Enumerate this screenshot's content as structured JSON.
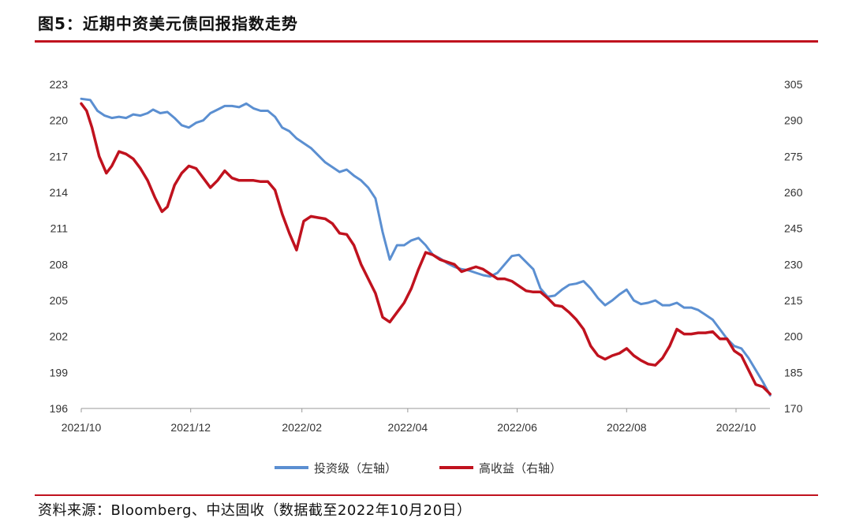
{
  "header": {
    "title": "图5：近期中资美元债回报指数走势"
  },
  "footer": {
    "source": "资料来源：Bloomberg、中达固收（数据截至2022年10月20日）"
  },
  "colors": {
    "accent_red": "#c0121e",
    "investment_grade": "#5b8fd1",
    "high_yield": "#c0121e"
  },
  "chart_data": {
    "type": "line",
    "title": "",
    "xlabel": "",
    "ylabel_left": "",
    "ylabel_right": "",
    "grid": false,
    "legend_position": "bottom",
    "x_ticks": [
      "2021/10",
      "2021/12",
      "2022/02",
      "2022/04",
      "2022/06",
      "2022/08",
      "2022/10"
    ],
    "y_left": {
      "min": 196,
      "max": 223,
      "ticks": [
        "223",
        "220",
        "217",
        "214",
        "211",
        "208",
        "205",
        "202",
        "199",
        "196"
      ]
    },
    "y_right": {
      "min": 170,
      "max": 305,
      "ticks": [
        "305",
        "290",
        "275",
        "260",
        "245",
        "230",
        "215",
        "200",
        "185",
        "170"
      ]
    },
    "series": [
      {
        "name": "投资级（左轴）",
        "axis": "left",
        "color": "#5b8fd1",
        "points": [
          [
            "2021-10-01",
            221.8
          ],
          [
            "2021-10-06",
            221.7
          ],
          [
            "2021-10-10",
            220.8
          ],
          [
            "2021-10-14",
            220.4
          ],
          [
            "2021-10-18",
            220.2
          ],
          [
            "2021-10-22",
            220.3
          ],
          [
            "2021-10-26",
            220.2
          ],
          [
            "2021-10-30",
            220.5
          ],
          [
            "2021-11-03",
            220.4
          ],
          [
            "2021-11-07",
            220.6
          ],
          [
            "2021-11-10",
            220.9
          ],
          [
            "2021-11-14",
            220.6
          ],
          [
            "2021-11-18",
            220.7
          ],
          [
            "2021-11-22",
            220.2
          ],
          [
            "2021-11-26",
            219.6
          ],
          [
            "2021-11-30",
            219.4
          ],
          [
            "2021-12-04",
            219.8
          ],
          [
            "2021-12-08",
            220.0
          ],
          [
            "2021-12-12",
            220.6
          ],
          [
            "2021-12-16",
            220.9
          ],
          [
            "2021-12-20",
            221.2
          ],
          [
            "2021-12-24",
            221.2
          ],
          [
            "2021-12-28",
            221.1
          ],
          [
            "2022-01-01",
            221.4
          ],
          [
            "2022-01-05",
            221.0
          ],
          [
            "2022-01-09",
            220.8
          ],
          [
            "2022-01-13",
            220.8
          ],
          [
            "2022-01-17",
            220.3
          ],
          [
            "2022-01-21",
            219.4
          ],
          [
            "2022-01-25",
            219.1
          ],
          [
            "2022-01-29",
            218.5
          ],
          [
            "2022-02-02",
            218.1
          ],
          [
            "2022-02-06",
            217.7
          ],
          [
            "2022-02-10",
            217.1
          ],
          [
            "2022-02-14",
            216.5
          ],
          [
            "2022-02-18",
            216.1
          ],
          [
            "2022-02-22",
            215.7
          ],
          [
            "2022-02-26",
            215.9
          ],
          [
            "2022-03-02",
            215.4
          ],
          [
            "2022-03-06",
            215.0
          ],
          [
            "2022-03-10",
            214.4
          ],
          [
            "2022-03-14",
            213.5
          ],
          [
            "2022-03-18",
            210.7
          ],
          [
            "2022-03-22",
            208.4
          ],
          [
            "2022-03-26",
            209.6
          ],
          [
            "2022-03-30",
            209.6
          ],
          [
            "2022-04-03",
            210.0
          ],
          [
            "2022-04-07",
            210.2
          ],
          [
            "2022-04-11",
            209.6
          ],
          [
            "2022-04-15",
            208.8
          ],
          [
            "2022-04-19",
            208.5
          ],
          [
            "2022-04-23",
            208.1
          ],
          [
            "2022-04-27",
            207.8
          ],
          [
            "2022-05-01",
            207.6
          ],
          [
            "2022-05-05",
            207.5
          ],
          [
            "2022-05-09",
            207.3
          ],
          [
            "2022-05-13",
            207.1
          ],
          [
            "2022-05-17",
            207.0
          ],
          [
            "2022-05-21",
            207.3
          ],
          [
            "2022-05-25",
            208.0
          ],
          [
            "2022-05-29",
            208.7
          ],
          [
            "2022-06-02",
            208.8
          ],
          [
            "2022-06-06",
            208.2
          ],
          [
            "2022-06-10",
            207.6
          ],
          [
            "2022-06-14",
            206.0
          ],
          [
            "2022-06-18",
            205.3
          ],
          [
            "2022-06-22",
            205.4
          ],
          [
            "2022-06-26",
            205.9
          ],
          [
            "2022-06-30",
            206.3
          ],
          [
            "2022-07-04",
            206.4
          ],
          [
            "2022-07-08",
            206.6
          ],
          [
            "2022-07-12",
            206.0
          ],
          [
            "2022-07-16",
            205.2
          ],
          [
            "2022-07-20",
            204.6
          ],
          [
            "2022-07-24",
            205.0
          ],
          [
            "2022-07-28",
            205.5
          ],
          [
            "2022-08-01",
            205.9
          ],
          [
            "2022-08-05",
            205.0
          ],
          [
            "2022-08-09",
            204.7
          ],
          [
            "2022-08-13",
            204.8
          ],
          [
            "2022-08-17",
            205.0
          ],
          [
            "2022-08-21",
            204.6
          ],
          [
            "2022-08-25",
            204.6
          ],
          [
            "2022-08-29",
            204.8
          ],
          [
            "2022-09-02",
            204.4
          ],
          [
            "2022-09-06",
            204.4
          ],
          [
            "2022-09-10",
            204.2
          ],
          [
            "2022-09-14",
            203.8
          ],
          [
            "2022-09-18",
            203.4
          ],
          [
            "2022-09-22",
            202.6
          ],
          [
            "2022-09-26",
            201.8
          ],
          [
            "2022-09-30",
            201.2
          ],
          [
            "2022-10-04",
            201.0
          ],
          [
            "2022-10-08",
            200.2
          ],
          [
            "2022-10-12",
            199.2
          ],
          [
            "2022-10-16",
            198.2
          ],
          [
            "2022-10-20",
            197.1
          ]
        ]
      },
      {
        "name": "高收益（右轴）",
        "axis": "right",
        "color": "#c0121e",
        "points": [
          [
            "2021-10-01",
            297.0
          ],
          [
            "2021-10-04",
            294.0
          ],
          [
            "2021-10-07",
            287.0
          ],
          [
            "2021-10-11",
            275.0
          ],
          [
            "2021-10-15",
            268.0
          ],
          [
            "2021-10-18",
            271.0
          ],
          [
            "2021-10-22",
            277.0
          ],
          [
            "2021-10-26",
            276.0
          ],
          [
            "2021-10-30",
            274.0
          ],
          [
            "2021-11-03",
            270.0
          ],
          [
            "2021-11-07",
            265.0
          ],
          [
            "2021-11-11",
            258.0
          ],
          [
            "2021-11-15",
            252.0
          ],
          [
            "2021-11-18",
            254.0
          ],
          [
            "2021-11-22",
            263.0
          ],
          [
            "2021-11-26",
            268.0
          ],
          [
            "2021-11-30",
            271.0
          ],
          [
            "2021-12-04",
            270.0
          ],
          [
            "2021-12-08",
            266.0
          ],
          [
            "2021-12-12",
            262.0
          ],
          [
            "2021-12-16",
            265.0
          ],
          [
            "2021-12-20",
            269.0
          ],
          [
            "2021-12-24",
            266.0
          ],
          [
            "2021-12-28",
            265.0
          ],
          [
            "2022-01-01",
            265.0
          ],
          [
            "2022-01-05",
            265.0
          ],
          [
            "2022-01-09",
            264.5
          ],
          [
            "2022-01-13",
            264.5
          ],
          [
            "2022-01-17",
            261.0
          ],
          [
            "2022-01-21",
            251.0
          ],
          [
            "2022-01-25",
            243.0
          ],
          [
            "2022-01-29",
            236.0
          ],
          [
            "2022-02-02",
            248.0
          ],
          [
            "2022-02-06",
            250.0
          ],
          [
            "2022-02-10",
            249.5
          ],
          [
            "2022-02-14",
            249.0
          ],
          [
            "2022-02-18",
            247.0
          ],
          [
            "2022-02-22",
            243.0
          ],
          [
            "2022-02-26",
            242.5
          ],
          [
            "2022-03-02",
            238.0
          ],
          [
            "2022-03-06",
            230.0
          ],
          [
            "2022-03-10",
            224.0
          ],
          [
            "2022-03-14",
            218.0
          ],
          [
            "2022-03-18",
            208.0
          ],
          [
            "2022-03-22",
            206.0
          ],
          [
            "2022-03-26",
            210.0
          ],
          [
            "2022-03-30",
            214.0
          ],
          [
            "2022-04-03",
            220.0
          ],
          [
            "2022-04-07",
            228.0
          ],
          [
            "2022-04-11",
            235.0
          ],
          [
            "2022-04-15",
            234.0
          ],
          [
            "2022-04-19",
            232.0
          ],
          [
            "2022-04-23",
            231.0
          ],
          [
            "2022-04-27",
            230.0
          ],
          [
            "2022-05-01",
            227.0
          ],
          [
            "2022-05-05",
            228.0
          ],
          [
            "2022-05-09",
            229.0
          ],
          [
            "2022-05-13",
            228.0
          ],
          [
            "2022-05-17",
            226.0
          ],
          [
            "2022-05-21",
            224.0
          ],
          [
            "2022-05-25",
            224.0
          ],
          [
            "2022-05-29",
            223.0
          ],
          [
            "2022-06-02",
            221.0
          ],
          [
            "2022-06-06",
            219.0
          ],
          [
            "2022-06-10",
            218.5
          ],
          [
            "2022-06-14",
            218.5
          ],
          [
            "2022-06-18",
            216.0
          ],
          [
            "2022-06-22",
            213.0
          ],
          [
            "2022-06-26",
            212.5
          ],
          [
            "2022-06-30",
            210.0
          ],
          [
            "2022-07-04",
            207.0
          ],
          [
            "2022-07-08",
            203.0
          ],
          [
            "2022-07-12",
            196.0
          ],
          [
            "2022-07-16",
            192.0
          ],
          [
            "2022-07-20",
            190.5
          ],
          [
            "2022-07-24",
            192.0
          ],
          [
            "2022-07-28",
            193.0
          ],
          [
            "2022-08-01",
            195.0
          ],
          [
            "2022-08-05",
            192.0
          ],
          [
            "2022-08-09",
            190.0
          ],
          [
            "2022-08-13",
            188.5
          ],
          [
            "2022-08-17",
            188.0
          ],
          [
            "2022-08-21",
            191.0
          ],
          [
            "2022-08-25",
            196.0
          ],
          [
            "2022-08-29",
            203.0
          ],
          [
            "2022-09-02",
            201.0
          ],
          [
            "2022-09-06",
            201.0
          ],
          [
            "2022-09-10",
            201.5
          ],
          [
            "2022-09-14",
            201.5
          ],
          [
            "2022-09-18",
            202.0
          ],
          [
            "2022-09-22",
            199.0
          ],
          [
            "2022-09-26",
            199.0
          ],
          [
            "2022-09-30",
            194.0
          ],
          [
            "2022-10-04",
            192.0
          ],
          [
            "2022-10-08",
            186.0
          ],
          [
            "2022-10-12",
            180.0
          ],
          [
            "2022-10-16",
            179.0
          ],
          [
            "2022-10-20",
            176.0
          ]
        ]
      }
    ]
  }
}
